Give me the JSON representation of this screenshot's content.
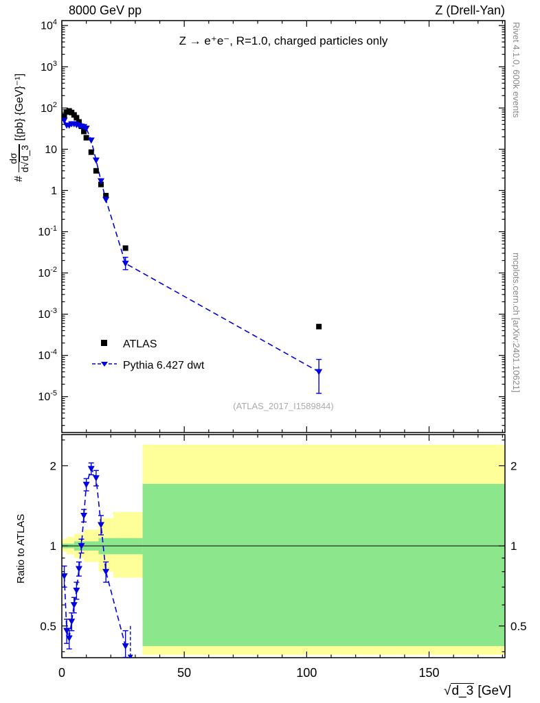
{
  "header": {
    "left": "8000 GeV pp",
    "right": "Z (Drell-Yan)"
  },
  "plot_title": "Z  →  e⁺e⁻, R=1.0, charged particles only",
  "watermark": "(ATLAS_2017_I1589844)",
  "right_margin": {
    "top": "Rivet 4.1.0,  600k events",
    "bottom": "mcplots.cern.ch [arXiv:2401.10621]"
  },
  "axis_labels": {
    "main_y": {
      "prefix": "#",
      "numerator": "dσ",
      "denom_pre": "d√",
      "denom_rad": "d_3",
      "suffix": "[{pb} {GeV}⁻¹]"
    },
    "ratio_y": "Ratio to ATLAS",
    "x": {
      "sqrt": "√",
      "rad": "d_3",
      "unit": " [GeV]"
    }
  },
  "legend": {
    "items": [
      {
        "label": "ATLAS",
        "marker": "black-square"
      },
      {
        "label": "Pythia 6.427 dwt",
        "marker": "blue-triangle-dashed-line"
      }
    ]
  },
  "colors": {
    "pythia_blue": "#0000e0",
    "band_yellow": "#ffff99",
    "band_green": "#8ce68c",
    "watermark_gray": "#aaaaaa",
    "margin_gray": "#888888"
  },
  "chart_data": [
    {
      "type": "scatter",
      "panel": "main",
      "title": "Z → e+e-, R=1.0, charged particles only",
      "xlabel": "√d_3 [GeV]",
      "ylabel": "# dσ/d√d_3 [{pb} {GeV}^-1]",
      "xlim": [
        0,
        181
      ],
      "ylog_range": [
        -5.87,
        4.12
      ],
      "x_major_ticks": [
        0,
        50,
        100,
        150
      ],
      "x_minor_step": 10,
      "y_label_exps": [
        4,
        3,
        2,
        1,
        0,
        -1,
        -2,
        -3,
        -4,
        -5
      ],
      "series": [
        {
          "name": "ATLAS",
          "marker": "square",
          "color": "#000000",
          "x": [
            1,
            2,
            3,
            4,
            5,
            6,
            7,
            8,
            9,
            10,
            12,
            14,
            16,
            18,
            26,
            105
          ],
          "y": [
            65,
            80,
            85,
            78,
            68,
            58,
            46,
            36,
            27,
            19,
            8.5,
            3.0,
            1.4,
            0.75,
            0.04,
            0.0005
          ]
        },
        {
          "name": "Pythia 6.427 dwt",
          "marker": "triangle-down",
          "color": "#0000e0",
          "line": "dashed",
          "x": [
            1,
            2,
            3,
            4,
            5,
            6,
            7,
            8,
            9,
            10,
            12,
            14,
            16,
            18,
            26,
            105
          ],
          "y": [
            50,
            38,
            38,
            41,
            41,
            39,
            38,
            36,
            35,
            32,
            16.5,
            5.4,
            1.7,
            0.6,
            0.017,
            4e-05
          ],
          "yerr_lo": [
            null,
            null,
            null,
            null,
            null,
            null,
            null,
            null,
            null,
            null,
            null,
            null,
            null,
            null,
            0.005,
            2.8e-05
          ],
          "yerr_hi": [
            null,
            null,
            null,
            null,
            null,
            null,
            null,
            null,
            null,
            null,
            null,
            null,
            null,
            null,
            0.007,
            4e-05
          ]
        }
      ]
    },
    {
      "type": "ratio",
      "panel": "ratio",
      "ylabel": "Ratio to ATLAS",
      "ylog": true,
      "ylim": [
        0.38,
        2.62
      ],
      "y_major_ticks": [
        0.5,
        1,
        2
      ],
      "y_minor_ticks": [
        0.4,
        0.6,
        0.7,
        0.8,
        0.9,
        2.5
      ],
      "reference_line": 1,
      "bands": {
        "yellow": {
          "color": "#ffff99",
          "segments": [
            [
              0,
              2,
              0.95,
              1.06
            ],
            [
              2,
              5,
              0.93,
              1.08
            ],
            [
              5,
              9,
              0.9,
              1.11
            ],
            [
              9,
              15,
              0.87,
              1.15
            ],
            [
              15,
              21,
              0.8,
              1.27
            ],
            [
              21,
              33,
              0.76,
              1.34
            ],
            [
              33,
              181,
              0.39,
              2.4
            ]
          ]
        },
        "green": {
          "color": "#8ce68c",
          "segments": [
            [
              0,
              5,
              0.98,
              1.02
            ],
            [
              5,
              15,
              0.96,
              1.04
            ],
            [
              15,
              33,
              0.93,
              1.07
            ],
            [
              33,
              181,
              0.42,
              1.71
            ]
          ]
        }
      },
      "series": [
        {
          "name": "Pythia 6.427 dwt / ATLAS",
          "color": "#0000e0",
          "line": "dashed",
          "marker": "triangle-down",
          "x": [
            1,
            2,
            3,
            4,
            5,
            6,
            7,
            8,
            9,
            10,
            12,
            14,
            16,
            18,
            26
          ],
          "y": [
            0.77,
            0.48,
            0.45,
            0.52,
            0.6,
            0.68,
            0.82,
            1.0,
            1.3,
            1.7,
            1.95,
            1.8,
            1.2,
            0.8,
            0.42
          ],
          "yerr": [
            0.07,
            0.05,
            0.04,
            0.04,
            0.04,
            0.05,
            0.05,
            0.06,
            0.07,
            0.09,
            0.1,
            0.12,
            0.1,
            0.07,
            0.06
          ]
        }
      ],
      "down_arrow": {
        "x": 28,
        "from": 0.5,
        "to": 0.39
      }
    }
  ]
}
